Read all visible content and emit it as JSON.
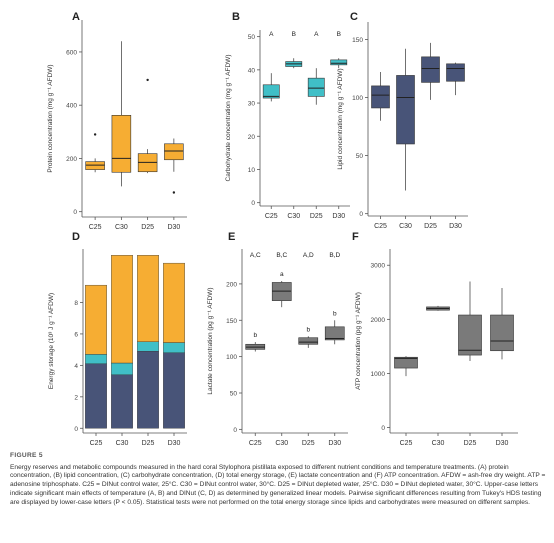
{
  "figure_label": "FIGURE 5",
  "caption": "Energy reserves and metabolic compounds measured in the hard coral Stylophora pistillata exposed to different nutrient conditions and temperature treatments. (A) protein concentration, (B) lipid concentration, (C) carbohydrate concentration, (D) total energy storage, (E) lactate concentration and (F) ATP concentration. AFDW = ash-free dry weight. ATP = adenosine triphosphate. C25 = DINut control water, 25°C. C30 = DINut control water, 30°C. D25 = DINut depleted water, 25°C. D30 = DINut depleted water, 30°C. Upper-case letters indicate significant main effects of temperature (A, B) and DINut (C, D) as determined by generalized linear models. Pairwise significant differences resulting from Tukey's HDS testing are displayed by lower-case letters (P < 0.05). Statistical tests were not performed on the total energy storage since lipids and carbohydrates were measured on different samples.",
  "colors": {
    "orange": "#f6ad33",
    "teal": "#40bfc7",
    "navy": "#485478",
    "navy_light": "#5a6690",
    "grey": "#7a7a7a",
    "axis": "#555555"
  },
  "chart_data": [
    {
      "panel": "A",
      "type": "box",
      "ylabel": "Protein concentration (mg g⁻¹ AFDW)",
      "categories": [
        "C25",
        "C30",
        "D25",
        "D30"
      ],
      "ylim": [
        -20,
        720
      ],
      "yticks": [
        0,
        200,
        400,
        600
      ],
      "box_color": "#f6ad33",
      "boxes": [
        {
          "min": 148,
          "q1": 158,
          "median": 175,
          "q3": 188,
          "max": 200,
          "outliers": [
            290
          ]
        },
        {
          "min": 95,
          "q1": 148,
          "median": 200,
          "q3": 362,
          "max": 640,
          "outliers": []
        },
        {
          "min": 145,
          "q1": 150,
          "median": 185,
          "q3": 218,
          "max": 235,
          "outliers": [
            495
          ]
        },
        {
          "min": 150,
          "q1": 195,
          "median": 228,
          "q3": 255,
          "max": 275,
          "outliers": [
            72
          ]
        }
      ],
      "annotations": []
    },
    {
      "panel": "B",
      "type": "box",
      "ylabel": "Carbohydrate concentration (mg g⁻¹ AFDW)",
      "categories": [
        "C25",
        "C30",
        "D25",
        "D30"
      ],
      "ylim": [
        -1,
        52
      ],
      "yticks": [
        0,
        10,
        20,
        30,
        40,
        50
      ],
      "box_color": "#40bfc7",
      "boxes": [
        {
          "min": 30.5,
          "q1": 31.5,
          "median": 32,
          "q3": 35.5,
          "max": 39,
          "outliers": []
        },
        {
          "min": 40.5,
          "q1": 41,
          "median": 41.8,
          "q3": 42.5,
          "max": 43.5,
          "outliers": []
        },
        {
          "min": 29.5,
          "q1": 32,
          "median": 34.5,
          "q3": 37.5,
          "max": 40.5,
          "outliers": []
        },
        {
          "min": 40.5,
          "q1": 41.5,
          "median": 42,
          "q3": 43,
          "max": 43.5,
          "outliers": []
        }
      ],
      "annotations": [
        {
          "category": "C25",
          "text": "A"
        },
        {
          "category": "C30",
          "text": "B"
        },
        {
          "category": "D25",
          "text": "A"
        },
        {
          "category": "D30",
          "text": "B"
        }
      ]
    },
    {
      "panel": "C",
      "type": "box",
      "ylabel": "Lipid concentration (mg g⁻¹ AFDW)",
      "categories": [
        "C25",
        "C30",
        "D25",
        "D30"
      ],
      "ylim": [
        -2,
        165
      ],
      "yticks": [
        0,
        50,
        100,
        150
      ],
      "box_color": "#485478",
      "boxes": [
        {
          "min": 80,
          "q1": 91,
          "median": 102,
          "q3": 110,
          "max": 122,
          "outliers": []
        },
        {
          "min": 20,
          "q1": 60,
          "median": 100,
          "q3": 119,
          "max": 142,
          "outliers": []
        },
        {
          "min": 98,
          "q1": 113,
          "median": 125,
          "q3": 135,
          "max": 147,
          "outliers": []
        },
        {
          "min": 102,
          "q1": 114,
          "median": 125,
          "q3": 129,
          "max": 130,
          "outliers": []
        }
      ],
      "annotations": []
    },
    {
      "panel": "D",
      "type": "stacked-bar",
      "ylabel": "Energy storage (10³ J g⁻¹ AFDW)",
      "categories": [
        "C25",
        "C30",
        "D25",
        "D30"
      ],
      "ylim": [
        -0.3,
        11.4
      ],
      "yticks": [
        0,
        2,
        4,
        6,
        8
      ],
      "series": [
        {
          "color": "#485478",
          "values": [
            4.1,
            3.4,
            4.9,
            4.8
          ]
        },
        {
          "color": "#40bfc7",
          "values": [
            0.6,
            0.75,
            0.6,
            0.65
          ]
        },
        {
          "color": "#f6ad33",
          "values": [
            4.4,
            6.85,
            5.5,
            5.05
          ]
        }
      ]
    },
    {
      "panel": "E",
      "type": "box",
      "ylabel": "Lactate concentration (pg g⁻¹ AFDW)",
      "categories": [
        "C25",
        "C30",
        "D25",
        "D30"
      ],
      "ylim": [
        -5,
        248
      ],
      "yticks": [
        0,
        50,
        100,
        150,
        200
      ],
      "box_color": "#7a7a7a",
      "boxes": [
        {
          "min": 107,
          "q1": 110,
          "median": 113,
          "q3": 117,
          "max": 120,
          "outliers": []
        },
        {
          "min": 168,
          "q1": 177,
          "median": 190,
          "q3": 202,
          "max": 204,
          "outliers": []
        },
        {
          "min": 112,
          "q1": 117,
          "median": 120,
          "q3": 126,
          "max": 128,
          "outliers": []
        },
        {
          "min": 117,
          "q1": 123,
          "median": 125,
          "q3": 141,
          "max": 150,
          "outliers": []
        }
      ],
      "annotations": [
        {
          "category": "C25",
          "text": "A,C",
          "level": "top"
        },
        {
          "category": "C30",
          "text": "B,C",
          "level": "top"
        },
        {
          "category": "D25",
          "text": "A,D",
          "level": "top"
        },
        {
          "category": "D30",
          "text": "B,D",
          "level": "top"
        },
        {
          "category": "C25",
          "text": "b",
          "level": "box"
        },
        {
          "category": "C30",
          "text": "a",
          "level": "box"
        },
        {
          "category": "D25",
          "text": "b",
          "level": "box"
        },
        {
          "category": "D30",
          "text": "b",
          "level": "box"
        }
      ]
    },
    {
      "panel": "F",
      "type": "box",
      "ylabel": "ATP concentration (pg g⁻¹ AFDW)",
      "categories": [
        "C25",
        "C30",
        "D25",
        "D30"
      ],
      "ylim": [
        -100,
        3300
      ],
      "yticks": [
        0,
        1000,
        2000,
        3000
      ],
      "box_color": "#7a7a7a",
      "boxes": [
        {
          "min": 950,
          "q1": 1100,
          "median": 1280,
          "q3": 1300,
          "max": 1320,
          "outliers": []
        },
        {
          "min": 2160,
          "q1": 2170,
          "median": 2200,
          "q3": 2230,
          "max": 2250,
          "outliers": []
        },
        {
          "min": 1230,
          "q1": 1340,
          "median": 1430,
          "q3": 2080,
          "max": 2700,
          "outliers": []
        },
        {
          "min": 1260,
          "q1": 1420,
          "median": 1600,
          "q3": 2080,
          "max": 2580,
          "outliers": []
        }
      ],
      "annotations": []
    }
  ]
}
